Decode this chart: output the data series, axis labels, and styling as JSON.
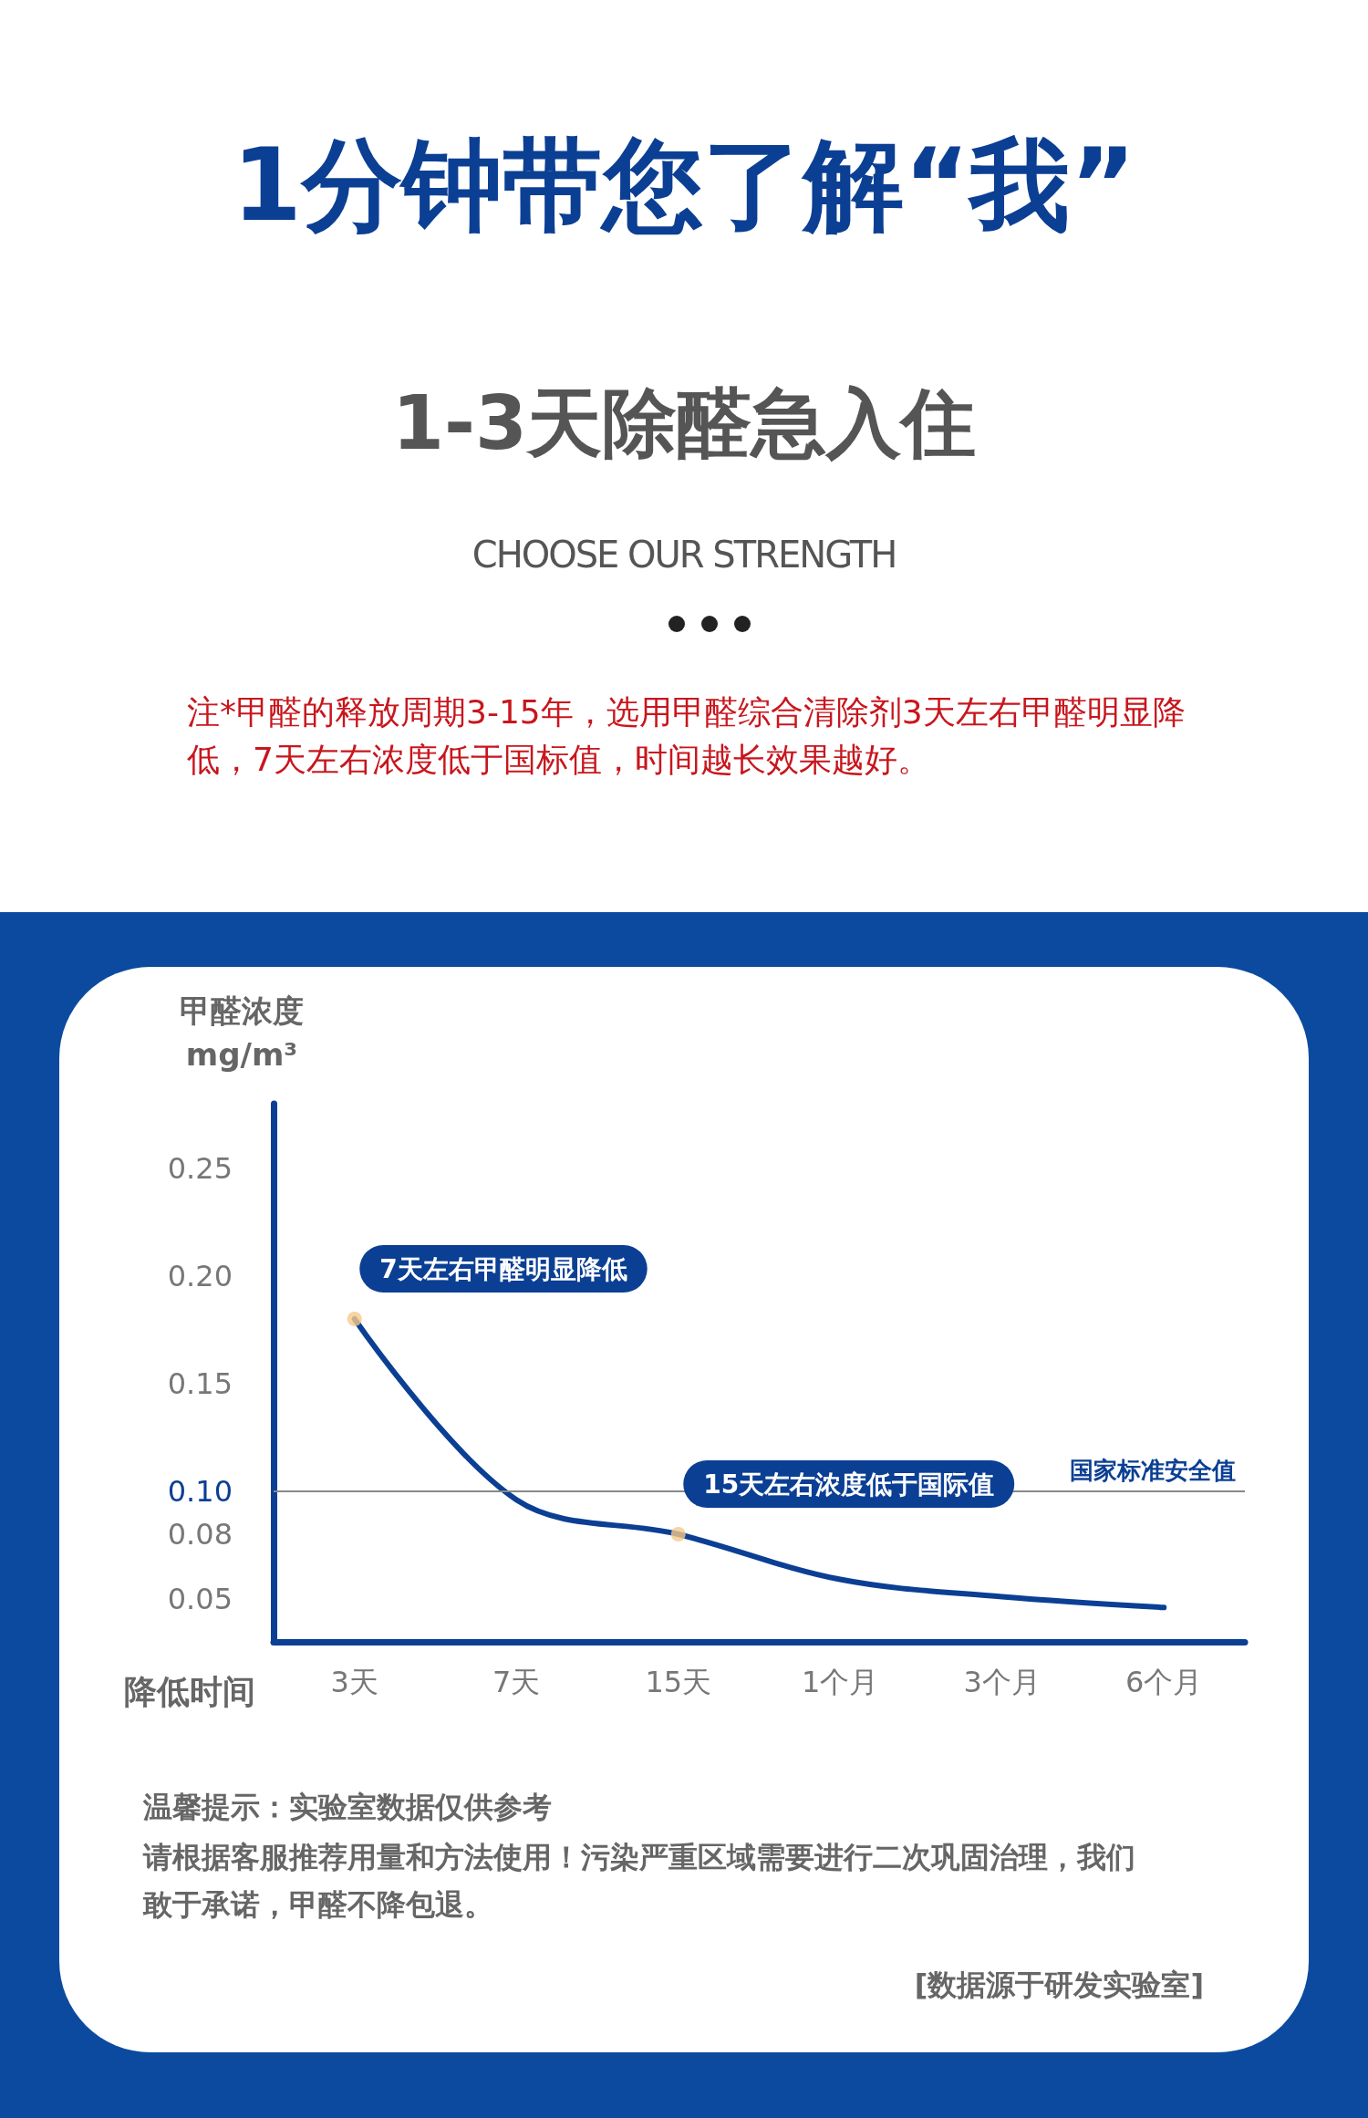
{
  "chart_data": {
    "type": "line",
    "title": "1分钟带您了解“我”",
    "subtitle": "1-3天除醛急入住",
    "xlabel": "降低时间",
    "ylabel": "甲醛浓度\nmg/m³",
    "categories": [
      "3天",
      "7天",
      "15天",
      "1个月",
      "3个月",
      "6个月"
    ],
    "series": [
      {
        "color": "#0b3f94",
        "values": [
          0.18,
          0.096,
          0.08,
          0.059,
          0.051,
          0.046
        ],
        "marker": "none"
      },
      {
        "type": "scatter",
        "color": "#f5c98a",
        "x": [
          "3天",
          "15天"
        ],
        "values": [
          0.18,
          0.08
        ],
        "marker": "circle"
      }
    ],
    "ylim": [
      0.03,
      0.28
    ],
    "yticks": [
      0.25,
      {
        "value": 0.2,
        "label": "0.20"
      },
      0.15,
      {
        "value": 0.1,
        "label": "0.10"
      },
      0.08,
      0.05
    ],
    "ref_lines": [
      {
        "axis": "y",
        "value": 0.1,
        "label": "国家标准安全值",
        "color": "#888888"
      }
    ],
    "grid": false,
    "line_style": "solid",
    "annotations": [
      "CHOOSE OUR STRENGTH",
      "注*甲醛的释放周期3-15年，选用甲醛综合清除剂3天左右甲醛明显降低，7天左右浓度低于国标值，时间越长效果越好。",
      {
        "text": "7天左右甲醛明显降低",
        "x": "3天",
        "y": 0.18
      },
      {
        "text": "15天左右浓度低于国际值",
        "x": "15天",
        "y": 0.08
      },
      "温馨提示：实验室数据仅供参考",
      "请根据客服推荐用量和方法使用！污染严重区域需要进行二次巩固治理，我们敢于承诺，甲醛不降包退。",
      "[数据源于研发实验室]"
    ]
  }
}
